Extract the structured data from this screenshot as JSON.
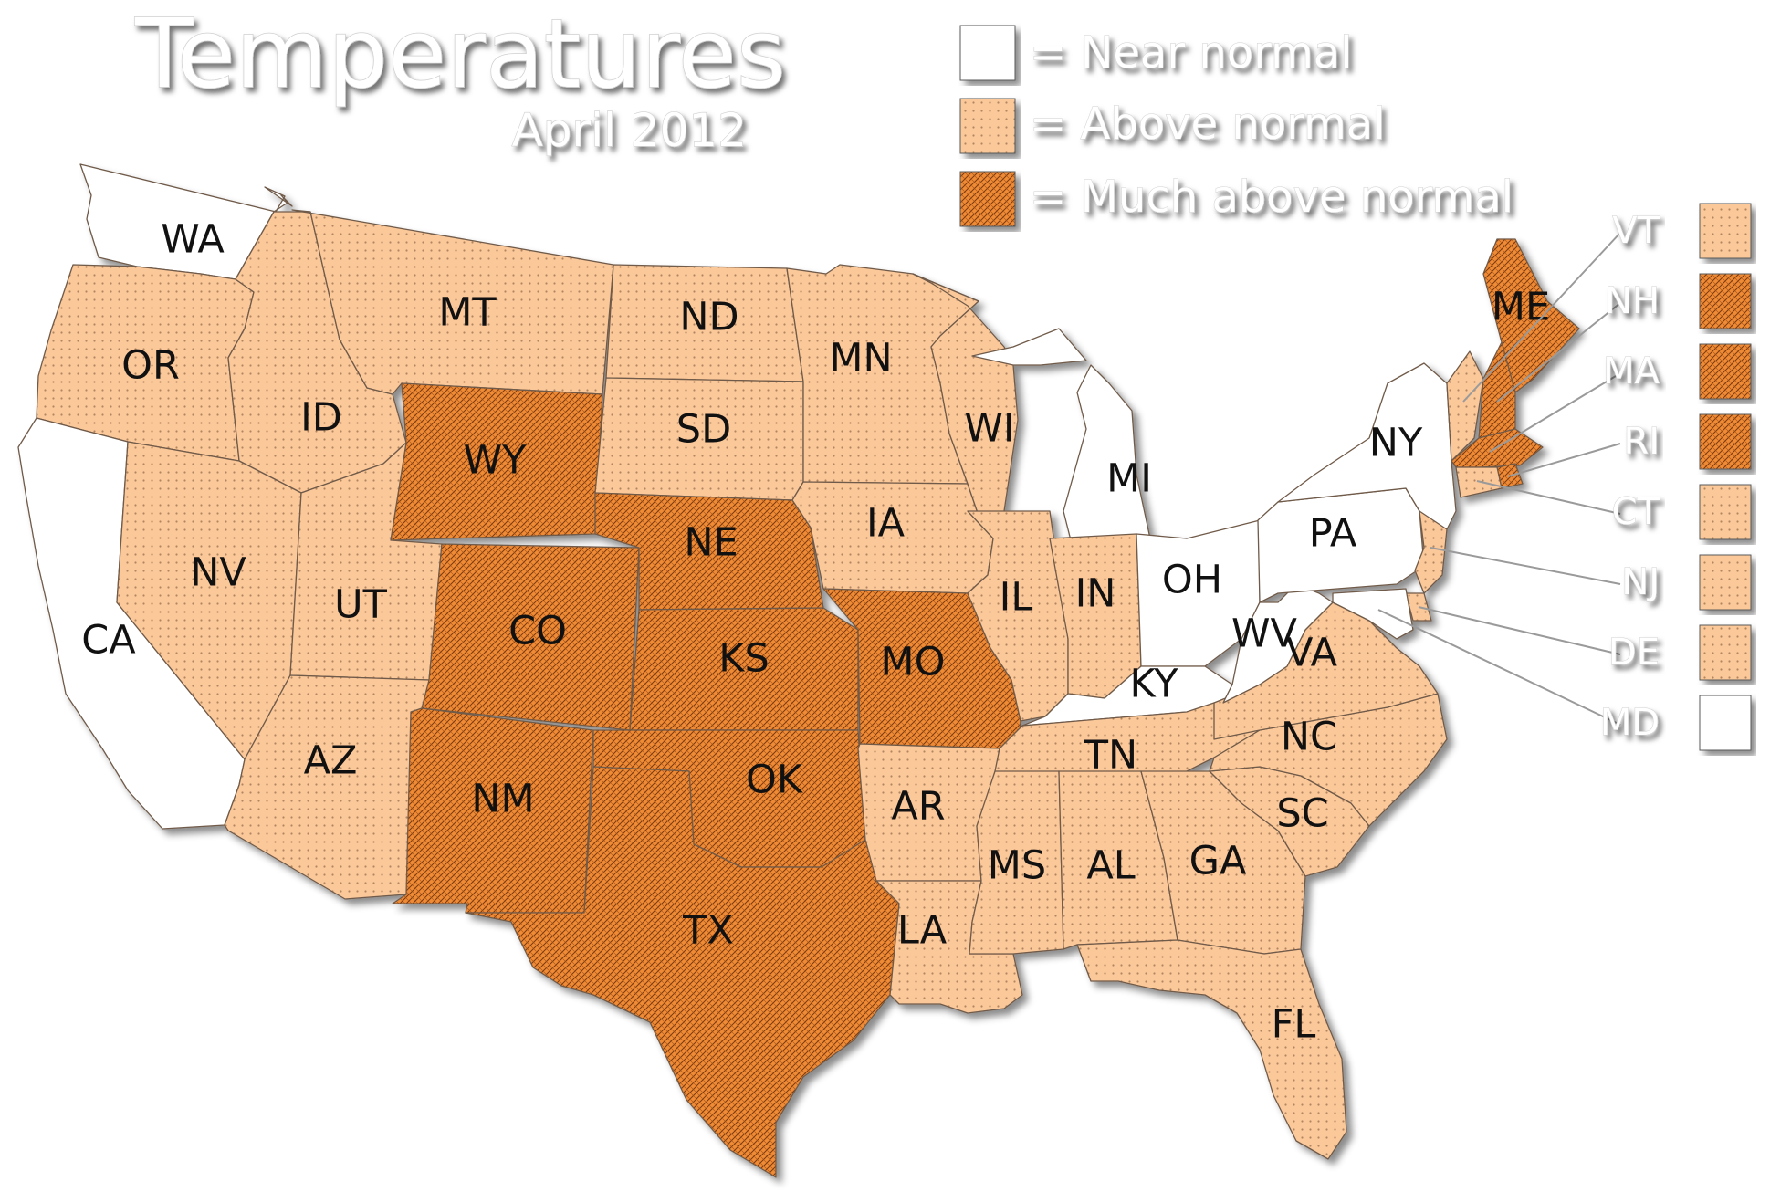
{
  "title": "Temperatures",
  "subtitle": "April 2012",
  "legend": [
    {
      "key": "near",
      "label": "= Near normal"
    },
    {
      "key": "above",
      "label": "= Above normal"
    },
    {
      "key": "much",
      "label": "= Much above normal"
    }
  ],
  "colors": {
    "near": "#ffffff",
    "above": "#fbc89a",
    "much": "#ef8a35",
    "border": "#6f5a48"
  },
  "states": [
    {
      "abbr": "WA",
      "category": "near"
    },
    {
      "abbr": "OR",
      "category": "above"
    },
    {
      "abbr": "CA",
      "category": "near"
    },
    {
      "abbr": "ID",
      "category": "above"
    },
    {
      "abbr": "NV",
      "category": "above"
    },
    {
      "abbr": "MT",
      "category": "above"
    },
    {
      "abbr": "WY",
      "category": "much"
    },
    {
      "abbr": "UT",
      "category": "above"
    },
    {
      "abbr": "AZ",
      "category": "above"
    },
    {
      "abbr": "CO",
      "category": "much"
    },
    {
      "abbr": "NM",
      "category": "much"
    },
    {
      "abbr": "ND",
      "category": "above"
    },
    {
      "abbr": "SD",
      "category": "above"
    },
    {
      "abbr": "NE",
      "category": "much"
    },
    {
      "abbr": "KS",
      "category": "much"
    },
    {
      "abbr": "OK",
      "category": "much"
    },
    {
      "abbr": "TX",
      "category": "much"
    },
    {
      "abbr": "MN",
      "category": "above"
    },
    {
      "abbr": "IA",
      "category": "above"
    },
    {
      "abbr": "MO",
      "category": "much"
    },
    {
      "abbr": "AR",
      "category": "above"
    },
    {
      "abbr": "LA",
      "category": "above"
    },
    {
      "abbr": "WI",
      "category": "above"
    },
    {
      "abbr": "IL",
      "category": "above"
    },
    {
      "abbr": "MI",
      "category": "near"
    },
    {
      "abbr": "IN",
      "category": "above"
    },
    {
      "abbr": "OH",
      "category": "near"
    },
    {
      "abbr": "KY",
      "category": "near"
    },
    {
      "abbr": "TN",
      "category": "above"
    },
    {
      "abbr": "MS",
      "category": "above"
    },
    {
      "abbr": "AL",
      "category": "above"
    },
    {
      "abbr": "GA",
      "category": "above"
    },
    {
      "abbr": "FL",
      "category": "above"
    },
    {
      "abbr": "SC",
      "category": "above"
    },
    {
      "abbr": "NC",
      "category": "above"
    },
    {
      "abbr": "VA",
      "category": "above"
    },
    {
      "abbr": "WV",
      "category": "near"
    },
    {
      "abbr": "PA",
      "category": "near"
    },
    {
      "abbr": "NY",
      "category": "near"
    },
    {
      "abbr": "ME",
      "category": "much"
    },
    {
      "abbr": "VT",
      "category": "above"
    },
    {
      "abbr": "NH",
      "category": "much"
    },
    {
      "abbr": "MA",
      "category": "much"
    },
    {
      "abbr": "RI",
      "category": "much"
    },
    {
      "abbr": "CT",
      "category": "above"
    },
    {
      "abbr": "NJ",
      "category": "above"
    },
    {
      "abbr": "DE",
      "category": "above"
    },
    {
      "abbr": "MD",
      "category": "near"
    }
  ],
  "callouts": [
    {
      "abbr": "VT",
      "category": "above"
    },
    {
      "abbr": "NH",
      "category": "much"
    },
    {
      "abbr": "MA",
      "category": "much"
    },
    {
      "abbr": "RI",
      "category": "much"
    },
    {
      "abbr": "CT",
      "category": "above"
    },
    {
      "abbr": "NJ",
      "category": "above"
    },
    {
      "abbr": "DE",
      "category": "above"
    },
    {
      "abbr": "MD",
      "category": "near"
    }
  ]
}
